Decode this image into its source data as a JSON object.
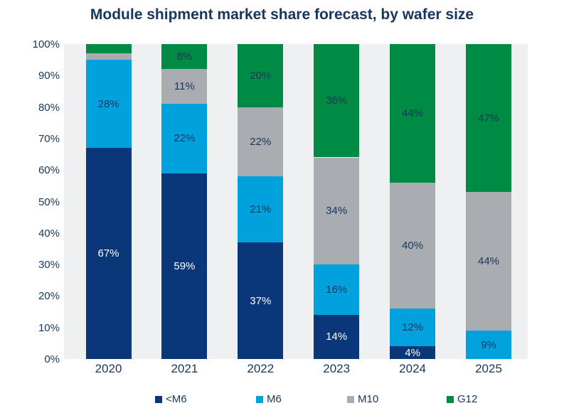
{
  "title": "Module shipment market share forecast, by wafer size",
  "colors": {
    "title_text": "#17365D",
    "axis_text": "#17365D",
    "plot_background": "#EFF0F1",
    "page_background": "#FFFFFF"
  },
  "y_axis": {
    "ticks": [
      "100%",
      "90%",
      "80%",
      "70%",
      "60%",
      "50%",
      "40%",
      "30%",
      "20%",
      "10%",
      "0%"
    ]
  },
  "legend": {
    "position": "bottom",
    "items": [
      "<M6",
      "M6",
      "M10",
      "G12"
    ]
  },
  "chart_data": {
    "type": "bar",
    "subtype": "stacked-100-percent",
    "title": "Module shipment market share forecast, by wafer size",
    "xlabel": "",
    "ylabel": "",
    "ylim": [
      0,
      100
    ],
    "grid": false,
    "legend_position": "bottom",
    "categories": [
      "2020",
      "2021",
      "2022",
      "2023",
      "2024",
      "2025"
    ],
    "series": [
      {
        "name": "<M6",
        "color": "#0A3778",
        "label_color": "#FFFFFF",
        "values": [
          67,
          59,
          37,
          14,
          4,
          0
        ],
        "labels": [
          "67%",
          "59%",
          "37%",
          "14%",
          "4%",
          null
        ]
      },
      {
        "name": "M6",
        "color": "#00A2DD",
        "label_color": "#17365D",
        "values": [
          28,
          22,
          21,
          16,
          12,
          9
        ],
        "labels": [
          "28%",
          "22%",
          "21%",
          "16%",
          "12%",
          "9%"
        ]
      },
      {
        "name": "M10",
        "color": "#A9ACB1",
        "label_color": "#17365D",
        "values": [
          2,
          11,
          22,
          34,
          40,
          44
        ],
        "labels": [
          null,
          "11%",
          "22%",
          "34%",
          "40%",
          "44%"
        ]
      },
      {
        "name": "G12",
        "color": "#008B45",
        "label_color": "#17365D",
        "values": [
          3,
          8,
          20,
          36,
          44,
          47
        ],
        "labels": [
          null,
          "8%",
          "20%",
          "36%",
          "44%",
          "47%"
        ]
      }
    ]
  }
}
